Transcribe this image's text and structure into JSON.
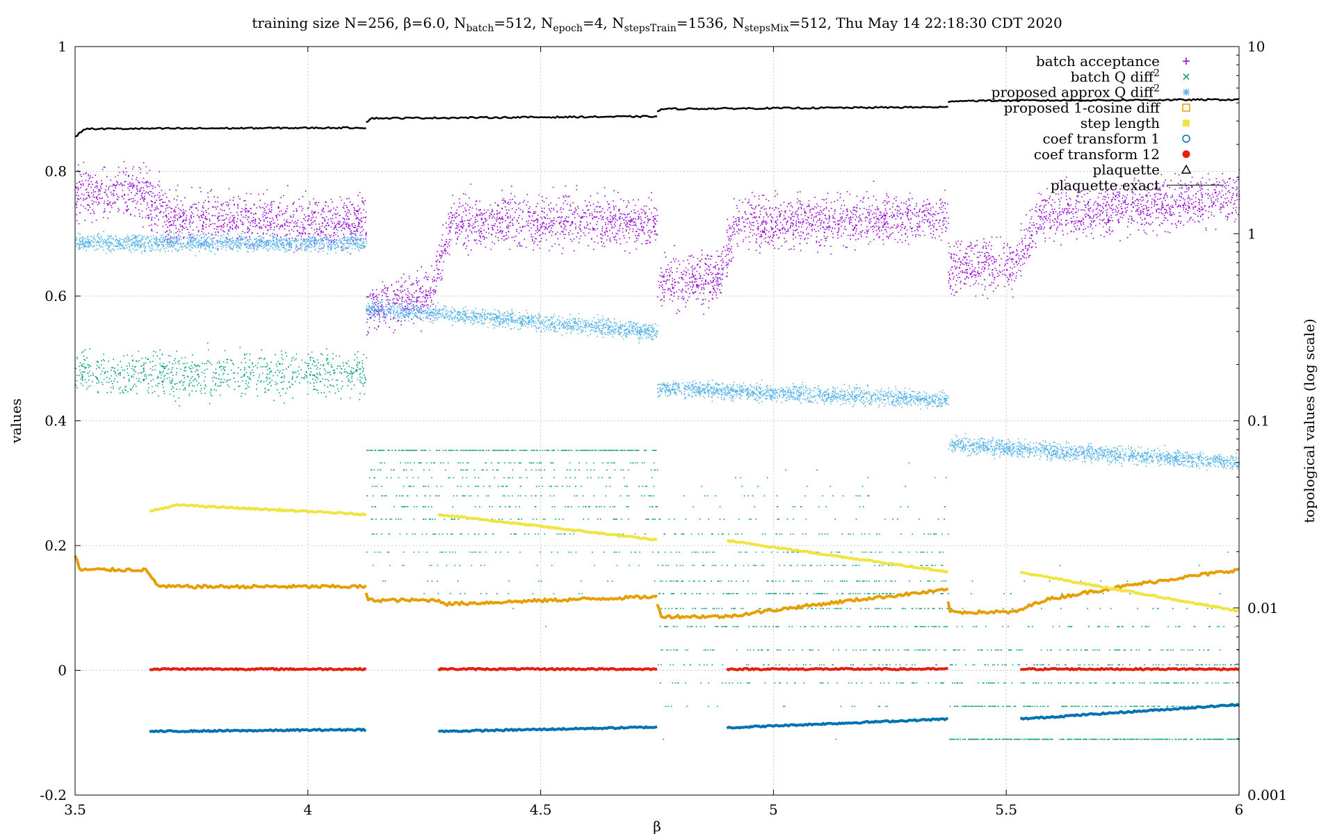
{
  "chart_data": {
    "type": "scatter",
    "title": {
      "prefix": "training size N=256, β=6.0, N",
      "parts": [
        {
          "sub": "batch",
          "text": "=512, N"
        },
        {
          "sub": "epoch",
          "text": "=4, N"
        },
        {
          "sub": "stepsTrain",
          "text": "=1536, N"
        },
        {
          "sub": "stepsMix",
          "text": "=512, Thu May 14 22:18:30 CDT 2020"
        }
      ]
    },
    "xlabel": "β",
    "ylabel": "values",
    "y2label": "topological values (log scale)",
    "xlim": [
      3.5,
      6
    ],
    "ylim": [
      -0.2,
      1
    ],
    "y2lim": [
      0.001,
      10
    ],
    "y2scale": "log",
    "grid": true,
    "legend_position": "top-right",
    "x_ticks": [
      "3.5",
      "4",
      "4.5",
      "5",
      "5.5",
      "6"
    ],
    "x_tick_values": [
      3.5,
      4,
      4.5,
      5,
      5.5,
      6
    ],
    "y_ticks": [
      "-0.2",
      "0",
      "0.2",
      "0.4",
      "0.6",
      "0.8",
      "1"
    ],
    "y_tick_values": [
      -0.2,
      0,
      0.2,
      0.4,
      0.6,
      0.8,
      1
    ],
    "y2_ticks": [
      "0.001",
      "0.01",
      "0.1",
      "1",
      "10"
    ],
    "y2_tick_values": [
      0.001,
      0.01,
      0.1,
      1,
      10
    ],
    "segments": [
      {
        "x_start": 3.5,
        "x_end": 4.125
      },
      {
        "x_start": 4.125,
        "x_end": 4.75
      },
      {
        "x_start": 4.75,
        "x_end": 5.375
      },
      {
        "x_start": 5.375,
        "x_end": 6.0
      }
    ],
    "series": [
      {
        "name": "batch acceptance",
        "sup": "",
        "marker": "plus",
        "color": "#9400d3",
        "axis": "y",
        "shape": "noisy",
        "spread": 0.045,
        "pieces": [
          {
            "x": [
              3.5,
              3.65,
              3.7,
              4.125
            ],
            "y": [
              0.765,
              0.765,
              0.725,
              0.72
            ]
          },
          {
            "x": [
              4.125,
              4.26,
              4.31,
              4.75
            ],
            "y": [
              0.58,
              0.6,
              0.72,
              0.72
            ]
          },
          {
            "x": [
              4.75,
              4.88,
              4.92,
              5.375
            ],
            "y": [
              0.62,
              0.63,
              0.72,
              0.725
            ]
          },
          {
            "x": [
              5.375,
              5.52,
              5.57,
              6.0
            ],
            "y": [
              0.65,
              0.65,
              0.73,
              0.76
            ]
          }
        ]
      },
      {
        "name": "batch Q diff",
        "sup": "2",
        "marker": "cross",
        "color": "#009e73",
        "axis": "y2",
        "shape": "quantized",
        "spread": 0.0,
        "pieces": [
          {
            "x": [
              3.5,
              4.125
            ],
            "y": [
              0.18,
              0.17
            ]
          },
          {
            "x": [
              4.125,
              4.75
            ],
            "y": [
              0.05,
              0.05
            ]
          },
          {
            "x": [
              4.75,
              5.375
            ],
            "y": [
              0.012,
              0.012
            ]
          },
          {
            "x": [
              5.375,
              6.0
            ],
            "y": [
              0.003,
              0.003
            ]
          }
        ]
      },
      {
        "name": "proposed approx Q diff",
        "sup": "2",
        "marker": "star",
        "color": "#56b4e9",
        "axis": "y2",
        "shape": "noisy",
        "spread": 0.022,
        "pieces": [
          {
            "x": [
              3.5,
              4.125
            ],
            "y": [
              0.9,
              0.9
            ]
          },
          {
            "x": [
              4.125,
              4.75
            ],
            "y": [
              0.4,
              0.3
            ]
          },
          {
            "x": [
              4.75,
              5.375
            ],
            "y": [
              0.15,
              0.13
            ]
          },
          {
            "x": [
              5.375,
              6.0
            ],
            "y": [
              0.075,
              0.06
            ]
          }
        ]
      },
      {
        "name": "proposed 1-cosine diff",
        "sup": "",
        "marker": "square",
        "color": "#e69f00",
        "axis": "y2",
        "shape": "line",
        "pieces": [
          {
            "x": [
              3.5,
              3.51,
              3.65,
              3.68,
              4.125
            ],
            "y": [
              0.019,
              0.016,
              0.016,
              0.013,
              0.013
            ]
          },
          {
            "x": [
              4.125,
              4.13,
              4.28,
              4.3,
              4.75
            ],
            "y": [
              0.012,
              0.011,
              0.011,
              0.0105,
              0.0115
            ]
          },
          {
            "x": [
              4.75,
              4.76,
              4.9,
              5.375
            ],
            "y": [
              0.0105,
              0.009,
              0.009,
              0.0125
            ]
          },
          {
            "x": [
              5.375,
              5.38,
              5.52,
              5.58,
              6.0
            ],
            "y": [
              0.011,
              0.0095,
              0.0095,
              0.011,
              0.016
            ]
          }
        ]
      },
      {
        "name": "step length",
        "sup": "",
        "marker": "filled-square",
        "color": "#f0e442",
        "axis": "y",
        "shape": "line",
        "pieces": [
          {
            "x": [
              3.66,
              3.72,
              4.125
            ],
            "y": [
              0.255,
              0.265,
              0.25
            ]
          },
          {
            "x": [
              4.28,
              4.75
            ],
            "y": [
              0.25,
              0.209
            ]
          },
          {
            "x": [
              4.9,
              5.375
            ],
            "y": [
              0.208,
              0.158
            ]
          },
          {
            "x": [
              5.53,
              6.0
            ],
            "y": [
              0.157,
              0.095
            ]
          }
        ]
      },
      {
        "name": "coef transform 1",
        "sup": "",
        "marker": "circle",
        "color": "#0072b2",
        "axis": "y",
        "shape": "line",
        "pieces": [
          {
            "x": [
              3.66,
              4.125
            ],
            "y": [
              -0.098,
              -0.095
            ]
          },
          {
            "x": [
              4.28,
              4.75
            ],
            "y": [
              -0.098,
              -0.091
            ]
          },
          {
            "x": [
              4.9,
              5.375
            ],
            "y": [
              -0.092,
              -0.078
            ]
          },
          {
            "x": [
              5.53,
              6.0
            ],
            "y": [
              -0.078,
              -0.055
            ]
          }
        ]
      },
      {
        "name": "coef transform 12",
        "sup": "",
        "marker": "filled-circle",
        "color": "#e51e10",
        "axis": "y",
        "shape": "line",
        "pieces": [
          {
            "x": [
              3.66,
              4.125
            ],
            "y": [
              0.002,
              0.002
            ]
          },
          {
            "x": [
              4.28,
              4.75
            ],
            "y": [
              0.002,
              0.002
            ]
          },
          {
            "x": [
              4.9,
              5.375
            ],
            "y": [
              0.002,
              0.002
            ]
          },
          {
            "x": [
              5.53,
              6.0
            ],
            "y": [
              0.002,
              0.002
            ]
          }
        ]
      },
      {
        "name": "plaquette",
        "sup": "",
        "marker": "triangle",
        "color": "#000000",
        "axis": "y",
        "shape": "line",
        "pieces": [
          {
            "x": [
              3.5,
              3.52,
              4.125
            ],
            "y": [
              0.855,
              0.868,
              0.87
            ]
          },
          {
            "x": [
              4.125,
              4.135,
              4.75
            ],
            "y": [
              0.878,
              0.885,
              0.888
            ]
          },
          {
            "x": [
              4.75,
              4.76,
              5.375
            ],
            "y": [
              0.895,
              0.9,
              0.903
            ]
          },
          {
            "x": [
              5.375,
              5.385,
              6.0
            ],
            "y": [
              0.91,
              0.913,
              0.915
            ]
          }
        ]
      },
      {
        "name": "plaquette exact",
        "sup": "",
        "marker": "line",
        "color": "#000000",
        "axis": "y",
        "shape": "none",
        "pieces": []
      }
    ]
  }
}
